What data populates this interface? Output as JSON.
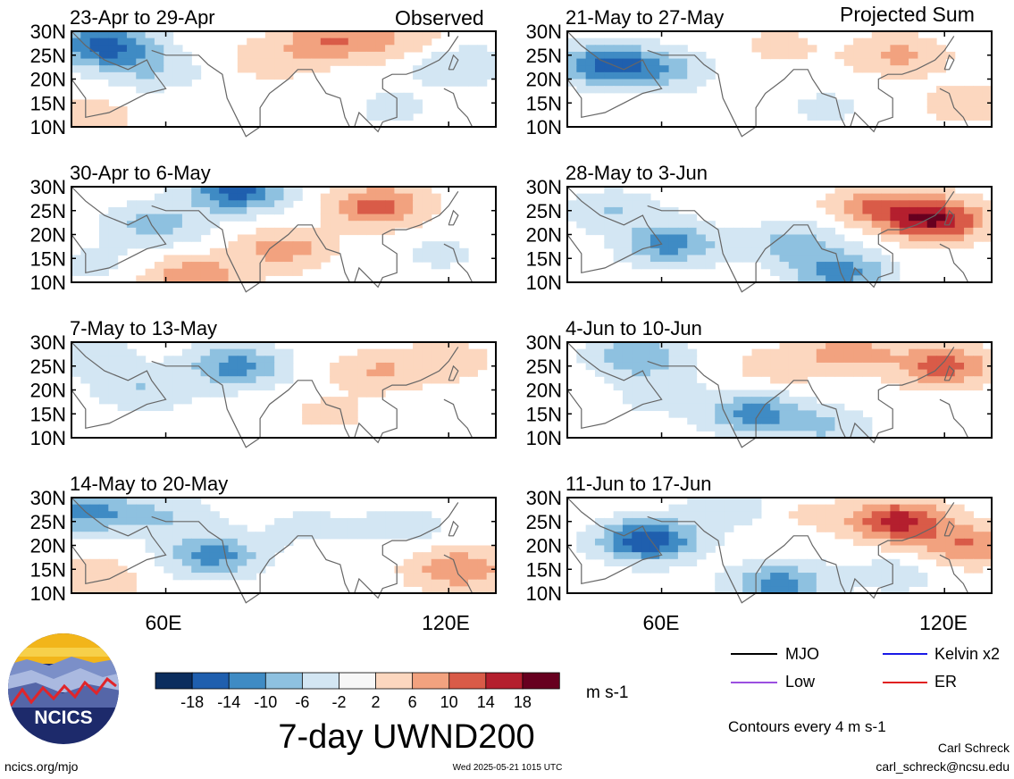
{
  "figure": {
    "title": "7-day UWND200",
    "website": "ncics.org/mjo",
    "timestamp": "Wed 2025-05-21 1015 UTC",
    "author": "Carl Schreck",
    "email": "carl_schreck@ncsu.edu",
    "logo_text": "NCICS",
    "contour_note": "Contours every 4 m s-1",
    "units": "m s-1",
    "column_labels": [
      "Observed",
      "Projected Sum"
    ]
  },
  "legend": {
    "items": [
      {
        "label": "MJO",
        "color": "#000000"
      },
      {
        "label": "Kelvin x2",
        "color": "#1a1ae6"
      },
      {
        "label": "Low",
        "color": "#9b4fe0"
      },
      {
        "label": "ER",
        "color": "#e02020"
      }
    ]
  },
  "colorbar": {
    "labels": [
      "-18",
      "-14",
      "-10",
      "-6",
      "-2",
      "2",
      "6",
      "10",
      "14",
      "18"
    ],
    "colors": [
      "#0b2d5e",
      "#1f5fae",
      "#3f8bc4",
      "#8ec1e0",
      "#d3e6f3",
      "#f7f7f7",
      "#fcd7bf",
      "#f2a27f",
      "#d95b48",
      "#b41f2e",
      "#67001f"
    ]
  },
  "chart_data": {
    "type": "heatmap",
    "variable": "UWND200",
    "xlim": [
      40,
      130
    ],
    "ylim": [
      10,
      30
    ],
    "x_ticks": [
      "60E",
      "120E"
    ],
    "y_ticks": [
      "30N",
      "25N",
      "20N",
      "15N",
      "10N"
    ],
    "panels": [
      {
        "title": "23-Apr to 29-Apr",
        "column": "Observed",
        "blobs": [
          {
            "lon": 47,
            "lat": 27,
            "v": -16
          },
          {
            "lon": 57,
            "lat": 22,
            "v": -6
          },
          {
            "lon": 95,
            "lat": 28,
            "v": 10
          },
          {
            "lon": 82,
            "lat": 24,
            "v": 4
          },
          {
            "lon": 122,
            "lat": 23,
            "v": -6
          },
          {
            "lon": 108,
            "lat": 14,
            "v": -3
          },
          {
            "lon": 43,
            "lat": 12,
            "v": 5
          },
          {
            "lon": 110,
            "lat": 28,
            "v": 5
          }
        ]
      },
      {
        "title": "30-Apr to 6-May",
        "column": "Observed",
        "blobs": [
          {
            "lon": 75,
            "lat": 29,
            "v": -16
          },
          {
            "lon": 58,
            "lat": 22,
            "v": -8
          },
          {
            "lon": 105,
            "lat": 26,
            "v": 12
          },
          {
            "lon": 85,
            "lat": 17,
            "v": 8
          },
          {
            "lon": 66,
            "lat": 11,
            "v": 10
          },
          {
            "lon": 118,
            "lat": 16,
            "v": -3
          },
          {
            "lon": 45,
            "lat": 14,
            "v": -3
          }
        ]
      },
      {
        "title": "7-May to 13-May",
        "column": "Observed",
        "blobs": [
          {
            "lon": 75,
            "lat": 25,
            "v": -12
          },
          {
            "lon": 55,
            "lat": 20,
            "v": -6
          },
          {
            "lon": 105,
            "lat": 24,
            "v": 6
          },
          {
            "lon": 95,
            "lat": 15,
            "v": 3
          },
          {
            "lon": 120,
            "lat": 26,
            "v": 4
          },
          {
            "lon": 45,
            "lat": 27,
            "v": -4
          },
          {
            "lon": 120,
            "lat": 14,
            "v": -2
          }
        ]
      },
      {
        "title": "14-May to 20-May",
        "column": "Observed",
        "blobs": [
          {
            "lon": 70,
            "lat": 18,
            "v": -12
          },
          {
            "lon": 43,
            "lat": 27,
            "v": -12
          },
          {
            "lon": 60,
            "lat": 26,
            "v": -6
          },
          {
            "lon": 122,
            "lat": 15,
            "v": 10
          },
          {
            "lon": 45,
            "lat": 13,
            "v": 5
          },
          {
            "lon": 110,
            "lat": 24,
            "v": -4
          },
          {
            "lon": 90,
            "lat": 24,
            "v": -3
          }
        ]
      },
      {
        "title": "21-May to 27-May",
        "column": "Projected Sum",
        "blobs": [
          {
            "lon": 48,
            "lat": 23,
            "v": -14
          },
          {
            "lon": 60,
            "lat": 22,
            "v": -8
          },
          {
            "lon": 110,
            "lat": 25,
            "v": 7
          },
          {
            "lon": 125,
            "lat": 15,
            "v": 5
          },
          {
            "lon": 85,
            "lat": 27,
            "v": 3
          },
          {
            "lon": 95,
            "lat": 14,
            "v": -3
          }
        ]
      },
      {
        "title": "28-May to 3-Jun",
        "column": "Projected Sum",
        "blobs": [
          {
            "lon": 118,
            "lat": 23,
            "v": 18
          },
          {
            "lon": 106,
            "lat": 26,
            "v": 10
          },
          {
            "lon": 62,
            "lat": 18,
            "v": -12
          },
          {
            "lon": 88,
            "lat": 18,
            "v": -8
          },
          {
            "lon": 98,
            "lat": 12,
            "v": -12
          },
          {
            "lon": 50,
            "lat": 25,
            "v": -6
          }
        ]
      },
      {
        "title": "4-Jun to 10-Jun",
        "column": "Projected Sum",
        "blobs": [
          {
            "lon": 120,
            "lat": 25,
            "v": 12
          },
          {
            "lon": 100,
            "lat": 28,
            "v": 8
          },
          {
            "lon": 80,
            "lat": 15,
            "v": -12
          },
          {
            "lon": 95,
            "lat": 12,
            "v": -6
          },
          {
            "lon": 55,
            "lat": 27,
            "v": -10
          },
          {
            "lon": 60,
            "lat": 19,
            "v": -4
          },
          {
            "lon": 85,
            "lat": 25,
            "v": 4
          }
        ]
      },
      {
        "title": "11-Jun to 17-Jun",
        "column": "Projected Sum",
        "blobs": [
          {
            "lon": 57,
            "lat": 21,
            "v": -18
          },
          {
            "lon": 110,
            "lat": 25,
            "v": 16
          },
          {
            "lon": 125,
            "lat": 20,
            "v": 10
          },
          {
            "lon": 85,
            "lat": 12,
            "v": -12
          },
          {
            "lon": 75,
            "lat": 28,
            "v": -6
          },
          {
            "lon": 110,
            "lat": 14,
            "v": -4
          },
          {
            "lon": 88,
            "lat": 27,
            "v": 3
          }
        ]
      }
    ]
  }
}
